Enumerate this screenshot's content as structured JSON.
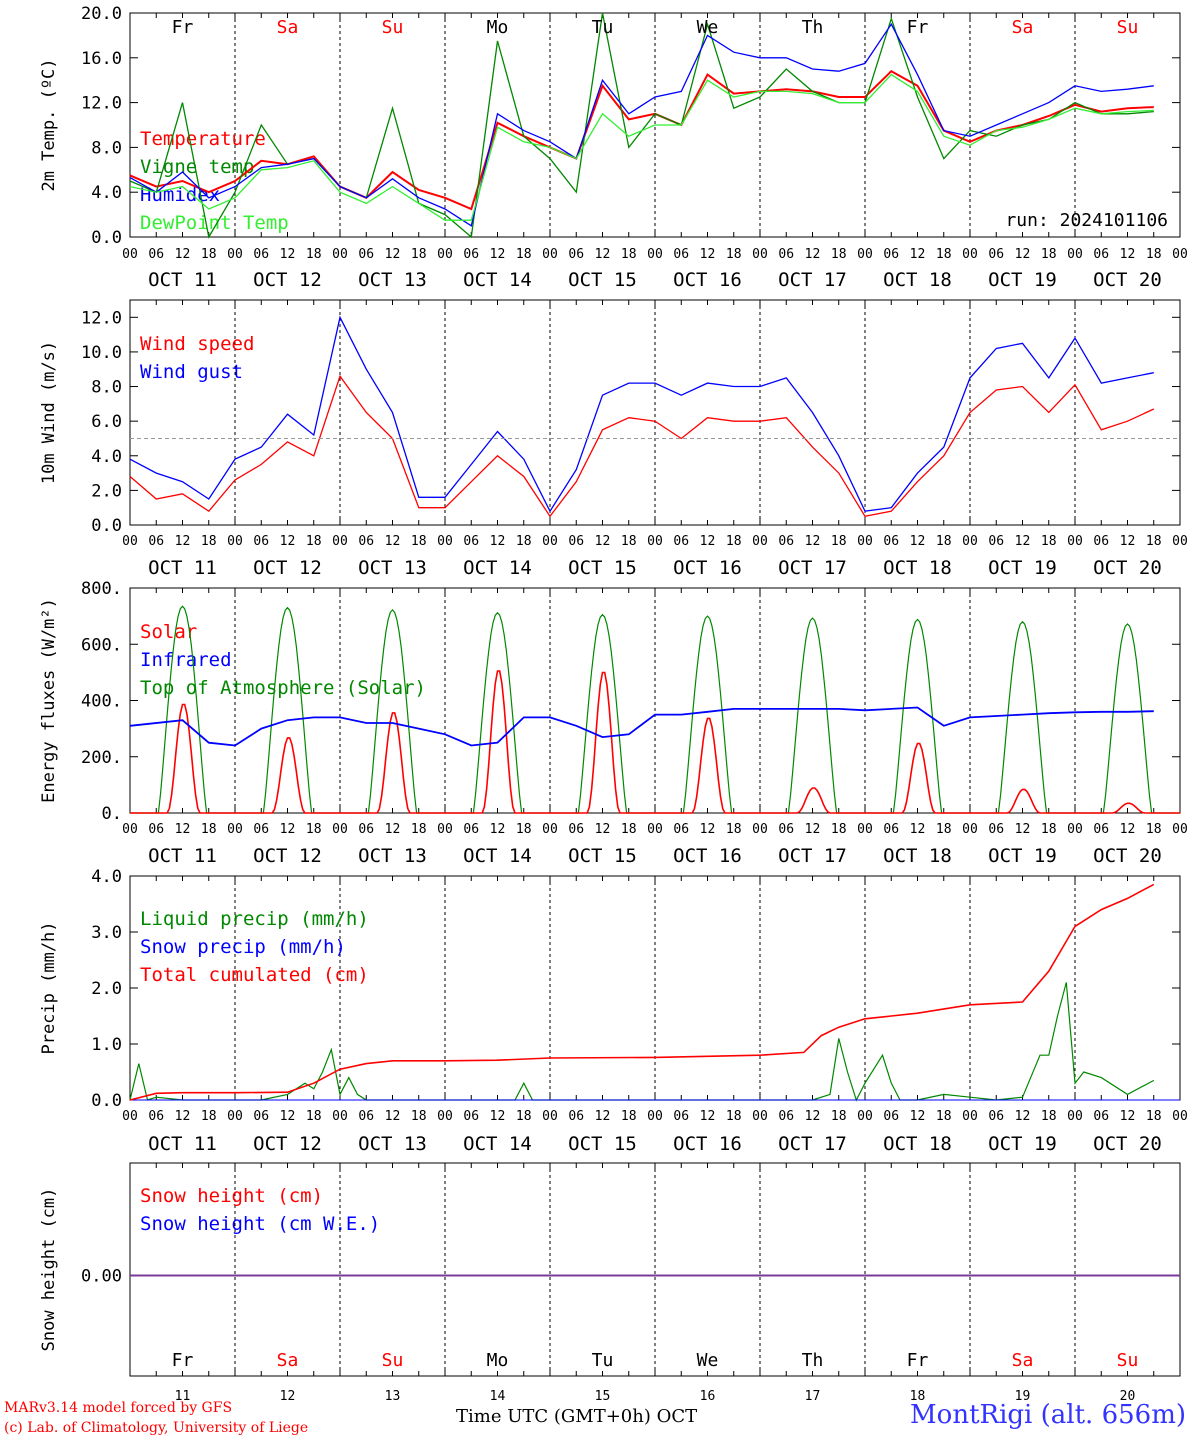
{
  "days": {
    "weekday_labels": [
      "Fr",
      "Sa",
      "Su",
      "Mo",
      "Tu",
      "We",
      "Th",
      "Fr",
      "Sa",
      "Su"
    ],
    "weekday_colors": [
      "#000000",
      "#ff0000",
      "#ff0000",
      "#000000",
      "#000000",
      "#000000",
      "#000000",
      "#000000",
      "#ff0000",
      "#ff0000"
    ],
    "date_labels": [
      "OCT 11",
      "OCT 12",
      "OCT 13",
      "OCT 14",
      "OCT 15",
      "OCT 16",
      "OCT 17",
      "OCT 18",
      "OCT 19",
      "OCT 20"
    ],
    "day_numbers": [
      "11",
      "12",
      "13",
      "14",
      "15",
      "16",
      "17",
      "18",
      "19",
      "20"
    ],
    "hour_ticks": [
      "00",
      "06",
      "12",
      "18"
    ],
    "end_tick": "00"
  },
  "footer": {
    "credit_line1": "MARv3.14 model forced by GFS",
    "credit_line2": "(c) Lab. of Climatology, University of Liege",
    "xlabel": "Time UTC (GMT+0h) OCT",
    "station": "MontRigi (alt. 656m)"
  },
  "chart_data": [
    {
      "type": "line",
      "ylabel": "2m Temp. (ºC)",
      "ylim": [
        0,
        20
      ],
      "yticks": [
        "0.0",
        "4.0",
        "8.0",
        "12.0",
        "16.0",
        "20.0"
      ],
      "annotation": "run: 2024101106",
      "x_hours": [
        0,
        6,
        12,
        18,
        24,
        30,
        36,
        42,
        48,
        54,
        60,
        66,
        72,
        78,
        84,
        90,
        96,
        102,
        108,
        114,
        120,
        126,
        132,
        138,
        144,
        150,
        156,
        162,
        168,
        174,
        180,
        186,
        192,
        198,
        204,
        210,
        216,
        222,
        228,
        234
      ],
      "series": [
        {
          "name": "Temperature",
          "color": "#ff0000",
          "values": [
            5.5,
            4.5,
            5.0,
            4.0,
            5.0,
            6.8,
            6.5,
            7.2,
            4.5,
            3.5,
            5.8,
            4.2,
            3.5,
            2.5,
            10.2,
            9.0,
            8.0,
            7.0,
            13.5,
            10.5,
            11.0,
            10.0,
            14.5,
            12.8,
            13.0,
            13.2,
            13.0,
            12.5,
            12.5,
            14.8,
            13.5,
            9.5,
            8.5,
            9.5,
            10.0,
            10.8,
            11.8,
            11.2,
            11.5,
            11.6
          ]
        },
        {
          "name": "Vigne temp",
          "color": "#008800",
          "values": [
            5.0,
            4.0,
            12.0,
            0.0,
            4.0,
            10.0,
            6.5,
            7.0,
            4.5,
            3.5,
            11.5,
            3.0,
            2.0,
            0.0,
            17.5,
            9.0,
            7.0,
            4.0,
            20.0,
            8.0,
            11.0,
            10.0,
            19.0,
            11.5,
            12.5,
            15.0,
            13.0,
            12.0,
            12.0,
            19.5,
            12.5,
            7.0,
            9.5,
            9.0,
            10.0,
            10.5,
            12.0,
            11.0,
            11.0,
            11.2
          ]
        },
        {
          "name": "Humidex",
          "color": "#0000ff",
          "values": [
            5.3,
            4.0,
            5.8,
            3.5,
            4.5,
            6.2,
            6.5,
            7.0,
            4.5,
            3.5,
            5.2,
            3.5,
            2.5,
            1.0,
            11.0,
            9.5,
            8.5,
            7.0,
            14.0,
            11.0,
            12.5,
            13.0,
            18.0,
            16.5,
            16.0,
            16.0,
            15.0,
            14.8,
            15.5,
            19.0,
            14.5,
            9.5,
            9.0,
            10.0,
            11.0,
            12.0,
            13.5,
            13.0,
            13.2,
            13.5
          ]
        },
        {
          "name": "DewPoint Temp",
          "color": "#33ee33",
          "values": [
            4.5,
            4.0,
            4.5,
            2.5,
            3.5,
            6.0,
            6.2,
            6.8,
            4.0,
            3.0,
            4.5,
            3.0,
            1.5,
            1.5,
            9.8,
            8.5,
            8.0,
            7.0,
            11.0,
            9.0,
            10.0,
            10.0,
            14.0,
            12.5,
            13.0,
            13.0,
            12.8,
            12.0,
            12.0,
            14.5,
            13.0,
            9.0,
            8.2,
            9.5,
            9.8,
            10.5,
            11.5,
            11.0,
            11.2,
            11.3
          ]
        }
      ]
    },
    {
      "type": "line",
      "ylabel": "10m Wind (m/s)",
      "ylim": [
        0,
        13
      ],
      "yticks": [
        "0.0",
        "2.0",
        "4.0",
        "6.0",
        "8.0",
        "10.0",
        "12.0"
      ],
      "reference_line": 5,
      "x_hours": [
        0,
        6,
        12,
        18,
        24,
        30,
        36,
        42,
        48,
        54,
        60,
        66,
        72,
        78,
        84,
        90,
        96,
        102,
        108,
        114,
        120,
        126,
        132,
        138,
        144,
        150,
        156,
        162,
        168,
        174,
        180,
        186,
        192,
        198,
        204,
        210,
        216,
        222,
        228,
        234
      ],
      "series": [
        {
          "name": "Wind speed",
          "color": "#ff0000",
          "values": [
            2.8,
            1.5,
            1.8,
            0.8,
            2.6,
            3.5,
            4.8,
            4.0,
            8.6,
            6.5,
            5.0,
            1.0,
            1.0,
            2.5,
            4.0,
            2.8,
            0.5,
            2.5,
            5.5,
            6.2,
            6.0,
            5.0,
            6.2,
            6.0,
            6.0,
            6.2,
            4.5,
            3.0,
            0.5,
            0.8,
            2.5,
            4.0,
            6.5,
            7.8,
            8.0,
            6.5,
            8.1,
            5.5,
            6.0,
            6.7
          ]
        },
        {
          "name": "Wind gust",
          "color": "#0000ff",
          "values": [
            3.8,
            3.0,
            2.5,
            1.5,
            3.8,
            4.5,
            6.4,
            5.2,
            12.0,
            9.0,
            6.5,
            1.6,
            1.6,
            3.5,
            5.4,
            3.8,
            0.8,
            3.2,
            7.5,
            8.2,
            8.2,
            7.5,
            8.2,
            8.0,
            8.0,
            8.5,
            6.5,
            4.0,
            0.8,
            1.0,
            3.0,
            4.5,
            8.5,
            10.2,
            10.5,
            8.5,
            10.8,
            8.2,
            8.5,
            8.8
          ]
        }
      ]
    },
    {
      "type": "line",
      "ylabel": "Energy fluxes (W/m²)",
      "ylim": [
        0,
        800
      ],
      "yticks": [
        "0.",
        "200.",
        "400.",
        "600.",
        "800."
      ],
      "series": [
        {
          "name": "Solar",
          "color": "#ff0000",
          "daily_peaks": [
            390,
            270,
            360,
            510,
            505,
            340,
            90,
            250,
            85,
            35
          ]
        },
        {
          "name": "Infrared",
          "color": "#0000ff",
          "x_hours": [
            0,
            12,
            18,
            24,
            30,
            36,
            42,
            48,
            54,
            60,
            66,
            72,
            78,
            84,
            90,
            96,
            102,
            108,
            114,
            120,
            126,
            132,
            138,
            144,
            150,
            156,
            162,
            168,
            174,
            180,
            186,
            192,
            198,
            204,
            210,
            216,
            222,
            228,
            234
          ],
          "values": [
            310,
            330,
            250,
            240,
            300,
            330,
            340,
            340,
            320,
            320,
            300,
            280,
            240,
            250,
            340,
            340,
            310,
            270,
            280,
            350,
            350,
            360,
            370,
            370,
            370,
            370,
            370,
            365,
            370,
            375,
            310,
            340,
            345,
            350,
            355,
            358,
            360,
            360,
            362
          ]
        },
        {
          "name": "Top of Atmosphere (Solar)",
          "color": "#008800",
          "daily_peaks": [
            735,
            730,
            722,
            712,
            705,
            700,
            693,
            688,
            680,
            672
          ]
        }
      ]
    },
    {
      "type": "line",
      "ylabel": "Precip (mm/h)",
      "ylim": [
        0,
        4
      ],
      "yticks": [
        "0.0",
        "1.0",
        "2.0",
        "3.0",
        "4.0"
      ],
      "series": [
        {
          "name": "Liquid precip (mm/h)",
          "color": "#008800",
          "x_hours": [
            0,
            2,
            4,
            6,
            12,
            18,
            24,
            30,
            36,
            40,
            42,
            44,
            46,
            48,
            50,
            52,
            54,
            60,
            66,
            72,
            78,
            84,
            88,
            90,
            92,
            96,
            120,
            144,
            150,
            156,
            160,
            162,
            164,
            166,
            168,
            172,
            174,
            176,
            180,
            186,
            192,
            198,
            204,
            208,
            210,
            212,
            214,
            216,
            218,
            222,
            228,
            234
          ],
          "values": [
            0,
            0.65,
            0,
            0.05,
            0,
            0,
            0,
            0,
            0.1,
            0.3,
            0.2,
            0.5,
            0.9,
            0.1,
            0.4,
            0.1,
            0,
            0,
            0,
            0,
            0,
            0,
            0,
            0.3,
            0,
            0,
            0,
            0,
            0,
            0,
            0.1,
            1.1,
            0.5,
            0,
            0.3,
            0.8,
            0.3,
            0,
            0,
            0.1,
            0.05,
            0,
            0.05,
            0.8,
            0.8,
            1.5,
            2.1,
            0.3,
            0.5,
            0.4,
            0.1,
            0.35
          ]
        },
        {
          "name": "Snow precip (mm/h)",
          "color": "#0000ff",
          "values": [
            0
          ]
        },
        {
          "name": "Total cumulated (cm)",
          "color": "#ff0000",
          "x_hours": [
            0,
            6,
            12,
            24,
            36,
            42,
            48,
            54,
            60,
            72,
            84,
            96,
            120,
            144,
            154,
            158,
            162,
            168,
            174,
            180,
            192,
            204,
            210,
            216,
            222,
            228,
            234
          ],
          "values": [
            0,
            0.12,
            0.13,
            0.13,
            0.14,
            0.3,
            0.55,
            0.65,
            0.7,
            0.7,
            0.71,
            0.75,
            0.76,
            0.8,
            0.85,
            1.15,
            1.3,
            1.45,
            1.5,
            1.55,
            1.7,
            1.75,
            2.3,
            3.1,
            3.4,
            3.6,
            3.85
          ]
        }
      ]
    },
    {
      "type": "line",
      "ylabel": "Snow height (cm)",
      "yticks": [
        "0.00"
      ],
      "series": [
        {
          "name": "Snow height (cm)",
          "color": "#ff0000",
          "values": [
            0
          ]
        },
        {
          "name": "Snow height (cm W.E.)",
          "color": "#0000ff",
          "values": [
            0
          ]
        }
      ]
    }
  ]
}
